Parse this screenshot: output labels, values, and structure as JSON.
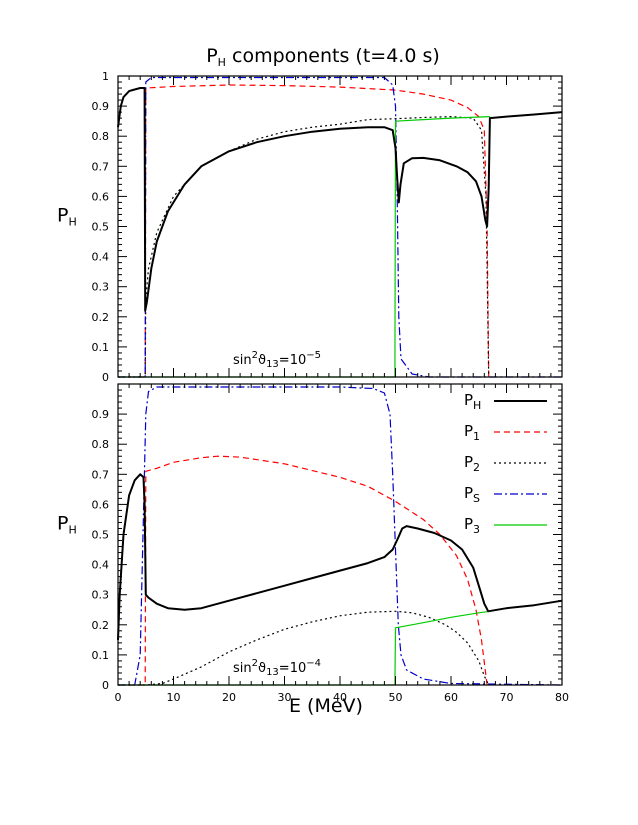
{
  "chart_data": [
    {
      "type": "line",
      "title": "P",
      "title_sub": "H",
      "title_rest": " components  (t=4.0 s)",
      "ylabel": "P",
      "ylabel_sub": "H",
      "xlim": [
        0,
        80
      ],
      "ylim": [
        0,
        1
      ],
      "yticks": [
        "0",
        "0.1",
        "0.2",
        "0.3",
        "0.4",
        "0.5",
        "0.6",
        "0.7",
        "0.8",
        "0.9",
        "1"
      ],
      "annotation": {
        "pre": "sin",
        "sup1": "2",
        "mid": "ϑ",
        "sub": "13",
        "eq": "=10",
        "sup2": "−5"
      },
      "series": [
        {
          "key": "P1",
          "color": "#ff0000",
          "dash": "6,4",
          "points": [
            [
              0,
              0
            ],
            [
              4.9,
              0
            ],
            [
              5.0,
              0.96
            ],
            [
              10,
              0.965
            ],
            [
              20,
              0.97
            ],
            [
              30,
              0.968
            ],
            [
              40,
              0.963
            ],
            [
              50,
              0.953
            ],
            [
              55,
              0.94
            ],
            [
              60,
              0.92
            ],
            [
              63,
              0.895
            ],
            [
              65,
              0.865
            ],
            [
              66,
              0.82
            ],
            [
              66.5,
              0.5
            ],
            [
              66.8,
              0
            ]
          ]
        },
        {
          "key": "P2",
          "color": "#000000",
          "dash": "2,3",
          "points": [
            [
              0,
              0
            ],
            [
              4.9,
              0
            ],
            [
              5.0,
              0.26
            ],
            [
              5.5,
              0.36
            ],
            [
              7,
              0.48
            ],
            [
              10,
              0.6
            ],
            [
              15,
              0.7
            ],
            [
              20,
              0.75
            ],
            [
              25,
              0.79
            ],
            [
              30,
              0.815
            ],
            [
              35,
              0.83
            ],
            [
              40,
              0.84
            ],
            [
              45,
              0.855
            ],
            [
              50,
              0.858
            ],
            [
              55,
              0.862
            ],
            [
              60,
              0.865
            ],
            [
              64,
              0.86
            ],
            [
              65.5,
              0.82
            ],
            [
              66.3,
              0.6
            ],
            [
              66.8,
              0
            ]
          ]
        },
        {
          "key": "PS",
          "color": "#0000cc",
          "dash": "8,3,2,3",
          "points": [
            [
              0,
              0
            ],
            [
              4.9,
              0
            ],
            [
              5.0,
              0.98
            ],
            [
              6,
              0.995
            ],
            [
              10,
              0.995
            ],
            [
              20,
              0.995
            ],
            [
              30,
              0.995
            ],
            [
              40,
              0.995
            ],
            [
              48,
              0.995
            ],
            [
              49.5,
              0.97
            ],
            [
              50,
              0.9
            ],
            [
              50.3,
              0.6
            ],
            [
              50.6,
              0.2
            ],
            [
              51,
              0.06
            ],
            [
              53,
              0.01
            ],
            [
              56,
              0
            ],
            [
              80,
              0
            ]
          ]
        },
        {
          "key": "P3",
          "color": "#00cc00",
          "dash": "",
          "points": [
            [
              0,
              0
            ],
            [
              49.9,
              0
            ],
            [
              50.0,
              0.85
            ],
            [
              55,
              0.855
            ],
            [
              60,
              0.86
            ],
            [
              67,
              0.865
            ]
          ]
        },
        {
          "key": "PH",
          "color": "#000000",
          "dash": "",
          "width": 2,
          "points": [
            [
              0,
              0.83
            ],
            [
              0.5,
              0.9
            ],
            [
              1,
              0.93
            ],
            [
              2,
              0.95
            ],
            [
              3,
              0.955
            ],
            [
              4,
              0.96
            ],
            [
              4.8,
              0.96
            ],
            [
              4.9,
              0.22
            ],
            [
              5.2,
              0.25
            ],
            [
              6,
              0.36
            ],
            [
              7,
              0.45
            ],
            [
              9,
              0.55
            ],
            [
              12,
              0.64
            ],
            [
              15,
              0.7
            ],
            [
              20,
              0.75
            ],
            [
              25,
              0.78
            ],
            [
              30,
              0.8
            ],
            [
              35,
              0.815
            ],
            [
              40,
              0.825
            ],
            [
              45,
              0.83
            ],
            [
              48,
              0.83
            ],
            [
              49.5,
              0.82
            ],
            [
              50.0,
              0.76
            ],
            [
              50.3,
              0.66
            ],
            [
              50.6,
              0.58
            ],
            [
              50.9,
              0.64
            ],
            [
              51.5,
              0.71
            ],
            [
              53,
              0.727
            ],
            [
              55,
              0.728
            ],
            [
              58,
              0.72
            ],
            [
              61,
              0.7
            ],
            [
              63,
              0.68
            ],
            [
              64.5,
              0.65
            ],
            [
              65.5,
              0.6
            ],
            [
              66.2,
              0.52
            ],
            [
              66.5,
              0.5
            ],
            [
              66.8,
              0.63
            ],
            [
              67,
              0.86
            ],
            [
              70,
              0.865
            ],
            [
              75,
              0.872
            ],
            [
              80,
              0.88
            ]
          ]
        }
      ]
    },
    {
      "type": "line",
      "ylabel": "P",
      "ylabel_sub": "H",
      "xlabel": "E (MeV)",
      "xlim": [
        0,
        80
      ],
      "ylim": [
        0,
        1
      ],
      "xticks": [
        "0",
        "10",
        "20",
        "30",
        "40",
        "50",
        "60",
        "70",
        "80"
      ],
      "yticks": [
        "0",
        "0.1",
        "0.2",
        "0.3",
        "0.4",
        "0.5",
        "0.6",
        "0.7",
        "0.8",
        "0.9"
      ],
      "annotation": {
        "pre": "sin",
        "sup1": "2",
        "mid": "ϑ",
        "sub": "13",
        "eq": "=10",
        "sup2": "−4"
      },
      "legend": [
        {
          "key": "PH",
          "label": "P",
          "sub": "H"
        },
        {
          "key": "P1",
          "label": "P",
          "sub": "1"
        },
        {
          "key": "P2",
          "label": "P",
          "sub": "2"
        },
        {
          "key": "PS",
          "label": "P",
          "sub": "S"
        },
        {
          "key": "P3",
          "label": "P",
          "sub": "3"
        }
      ],
      "series": [
        {
          "key": "P1",
          "color": "#ff0000",
          "dash": "6,4",
          "points": [
            [
              0,
              0
            ],
            [
              4.9,
              0
            ],
            [
              5.0,
              0.71
            ],
            [
              7,
              0.72
            ],
            [
              10,
              0.74
            ],
            [
              15,
              0.755
            ],
            [
              18,
              0.76
            ],
            [
              22,
              0.757
            ],
            [
              30,
              0.735
            ],
            [
              40,
              0.69
            ],
            [
              45,
              0.66
            ],
            [
              50,
              0.61
            ],
            [
              55,
              0.55
            ],
            [
              58,
              0.5
            ],
            [
              61,
              0.43
            ],
            [
              63,
              0.35
            ],
            [
              64.5,
              0.25
            ],
            [
              65.5,
              0.15
            ],
            [
              66.5,
              0
            ]
          ]
        },
        {
          "key": "P2",
          "color": "#000000",
          "dash": "2,3",
          "points": [
            [
              0,
              0
            ],
            [
              5,
              0
            ],
            [
              8,
              0.005
            ],
            [
              10,
              0.02
            ],
            [
              15,
              0.06
            ],
            [
              20,
              0.11
            ],
            [
              25,
              0.15
            ],
            [
              30,
              0.185
            ],
            [
              35,
              0.21
            ],
            [
              40,
              0.23
            ],
            [
              45,
              0.242
            ],
            [
              50,
              0.245
            ],
            [
              53,
              0.24
            ],
            [
              56,
              0.225
            ],
            [
              59,
              0.2
            ],
            [
              61,
              0.175
            ],
            [
              63,
              0.14
            ],
            [
              65,
              0.08
            ],
            [
              66,
              0.03
            ],
            [
              66.8,
              0
            ]
          ]
        },
        {
          "key": "PS",
          "color": "#0000cc",
          "dash": "8,3,2,3",
          "points": [
            [
              0,
              0
            ],
            [
              3,
              0
            ],
            [
              4,
              0.1
            ],
            [
              4.5,
              0.5
            ],
            [
              5,
              0.9
            ],
            [
              5.5,
              0.975
            ],
            [
              7,
              0.99
            ],
            [
              10,
              0.99
            ],
            [
              20,
              0.99
            ],
            [
              30,
              0.99
            ],
            [
              40,
              0.99
            ],
            [
              46,
              0.985
            ],
            [
              48,
              0.97
            ],
            [
              49,
              0.9
            ],
            [
              49.5,
              0.7
            ],
            [
              50,
              0.45
            ],
            [
              50.5,
              0.2
            ],
            [
              51,
              0.1
            ],
            [
              52,
              0.05
            ],
            [
              55,
              0.02
            ],
            [
              60,
              0.005
            ],
            [
              80,
              0
            ]
          ]
        },
        {
          "key": "P3",
          "color": "#00cc00",
          "dash": "",
          "points": [
            [
              0,
              0
            ],
            [
              49.9,
              0
            ],
            [
              50.0,
              0.19
            ],
            [
              55,
              0.207
            ],
            [
              60,
              0.225
            ],
            [
              65,
              0.24
            ],
            [
              67,
              0.245
            ]
          ]
        },
        {
          "key": "PH",
          "color": "#000000",
          "dash": "",
          "width": 2,
          "points": [
            [
              0,
              0.15
            ],
            [
              0.3,
              0.3
            ],
            [
              1,
              0.5
            ],
            [
              2,
              0.63
            ],
            [
              3,
              0.68
            ],
            [
              4,
              0.7
            ],
            [
              4.6,
              0.69
            ],
            [
              4.8,
              0.6
            ],
            [
              5.0,
              0.3
            ],
            [
              5.5,
              0.29
            ],
            [
              7,
              0.27
            ],
            [
              9,
              0.255
            ],
            [
              12,
              0.25
            ],
            [
              15,
              0.255
            ],
            [
              20,
              0.28
            ],
            [
              25,
              0.305
            ],
            [
              30,
              0.33
            ],
            [
              35,
              0.355
            ],
            [
              40,
              0.38
            ],
            [
              45,
              0.405
            ],
            [
              48,
              0.425
            ],
            [
              49.5,
              0.45
            ],
            [
              50.5,
              0.49
            ],
            [
              51.2,
              0.52
            ],
            [
              52,
              0.528
            ],
            [
              54,
              0.52
            ],
            [
              57,
              0.505
            ],
            [
              60,
              0.48
            ],
            [
              62,
              0.45
            ],
            [
              64,
              0.39
            ],
            [
              65,
              0.33
            ],
            [
              66,
              0.27
            ],
            [
              66.7,
              0.245
            ],
            [
              70,
              0.255
            ],
            [
              75,
              0.265
            ],
            [
              80,
              0.28
            ]
          ]
        }
      ]
    }
  ]
}
